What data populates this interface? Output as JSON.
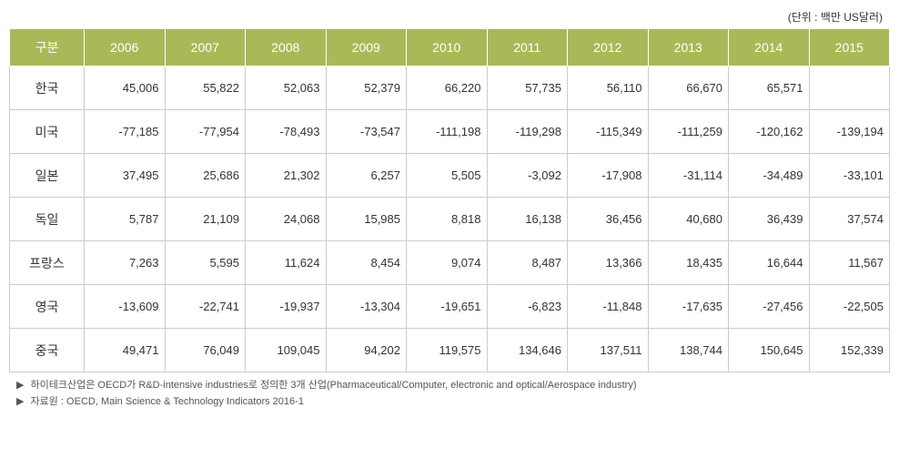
{
  "unit_label": "(단위 : 백만 US달러)",
  "table": {
    "columns": [
      "구분",
      "2006",
      "2007",
      "2008",
      "2009",
      "2010",
      "2011",
      "2012",
      "2013",
      "2014",
      "2015"
    ],
    "rows": [
      {
        "label": "한국",
        "values": [
          "45,006",
          "55,822",
          "52,063",
          "52,379",
          "66,220",
          "57,735",
          "56,110",
          "66,670",
          "65,571",
          ""
        ]
      },
      {
        "label": "미국",
        "values": [
          "-77,185",
          "-77,954",
          "-78,493",
          "-73,547",
          "-111,198",
          "-119,298",
          "-115,349",
          "-111,259",
          "-120,162",
          "-139,194"
        ]
      },
      {
        "label": "일본",
        "values": [
          "37,495",
          "25,686",
          "21,302",
          "6,257",
          "5,505",
          "-3,092",
          "-17,908",
          "-31,114",
          "-34,489",
          "-33,101"
        ]
      },
      {
        "label": "독일",
        "values": [
          "5,787",
          "21,109",
          "24,068",
          "15,985",
          "8,818",
          "16,138",
          "36,456",
          "40,680",
          "36,439",
          "37,574"
        ]
      },
      {
        "label": "프랑스",
        "values": [
          "7,263",
          "5,595",
          "11,624",
          "8,454",
          "9,074",
          "8,487",
          "13,366",
          "18,435",
          "16,644",
          "11,567"
        ]
      },
      {
        "label": "영국",
        "values": [
          "-13,609",
          "-22,741",
          "-19,937",
          "-13,304",
          "-19,651",
          "-6,823",
          "-11,848",
          "-17,635",
          "-27,456",
          "-22,505"
        ]
      },
      {
        "label": "중국",
        "values": [
          "49,471",
          "76,049",
          "109,045",
          "94,202",
          "119,575",
          "134,646",
          "137,511",
          "138,744",
          "150,645",
          "152,339"
        ]
      }
    ],
    "header_bg_color": "#a9b958",
    "header_text_color": "#ffffff",
    "border_color": "#cccccc",
    "cell_text_color": "#333333",
    "background_color": "#ffffff",
    "label_fontsize": 14,
    "value_fontsize": 13
  },
  "footnotes": [
    "하이테크산업은 OECD가 R&D-intensive industries로 정의한 3개 산업(Pharmaceutical/Computer, electronic and optical/Aerospace industry)",
    "자료원 : OECD, Main Science & Technology Indicators 2016-1"
  ],
  "footnote_marker": "▶"
}
